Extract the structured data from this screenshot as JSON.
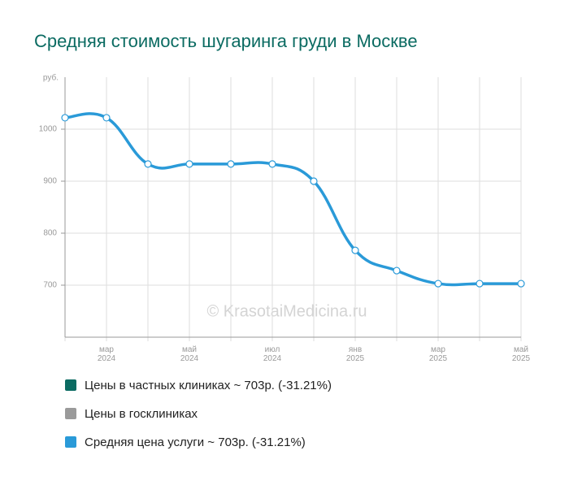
{
  "chart_data": {
    "type": "line",
    "title": "Средняя стоимость шугаринга груди в Москве",
    "y_unit": "руб.",
    "watermark": "© KrasotaiMedicina.ru",
    "categories": [
      null,
      "мар 2024",
      null,
      "май 2024",
      null,
      "июл 2024",
      null,
      "янв 2025",
      null,
      "мар 2025",
      null,
      "май 2025"
    ],
    "series": [
      {
        "name": "Средняя цена услуги ~ 703р. (-31.21%)",
        "color": "#2a9ad8",
        "values": [
          1022,
          1022,
          933,
          933,
          933,
          933,
          900,
          767,
          728,
          703,
          703,
          703
        ]
      }
    ],
    "legend": [
      {
        "label": "Цены в частных клиниках ~ 703р. (-31.21%)",
        "color": "#0b6b62"
      },
      {
        "label": "Цены в госклиниках",
        "color": "#9a9a9a"
      },
      {
        "label": "Средняя цена услуги ~ 703р. (-31.21%)",
        "color": "#2a9ad8"
      }
    ],
    "ylim": [
      600,
      1100
    ],
    "yticks": [
      700,
      800,
      900,
      1000
    ],
    "grid": true
  }
}
